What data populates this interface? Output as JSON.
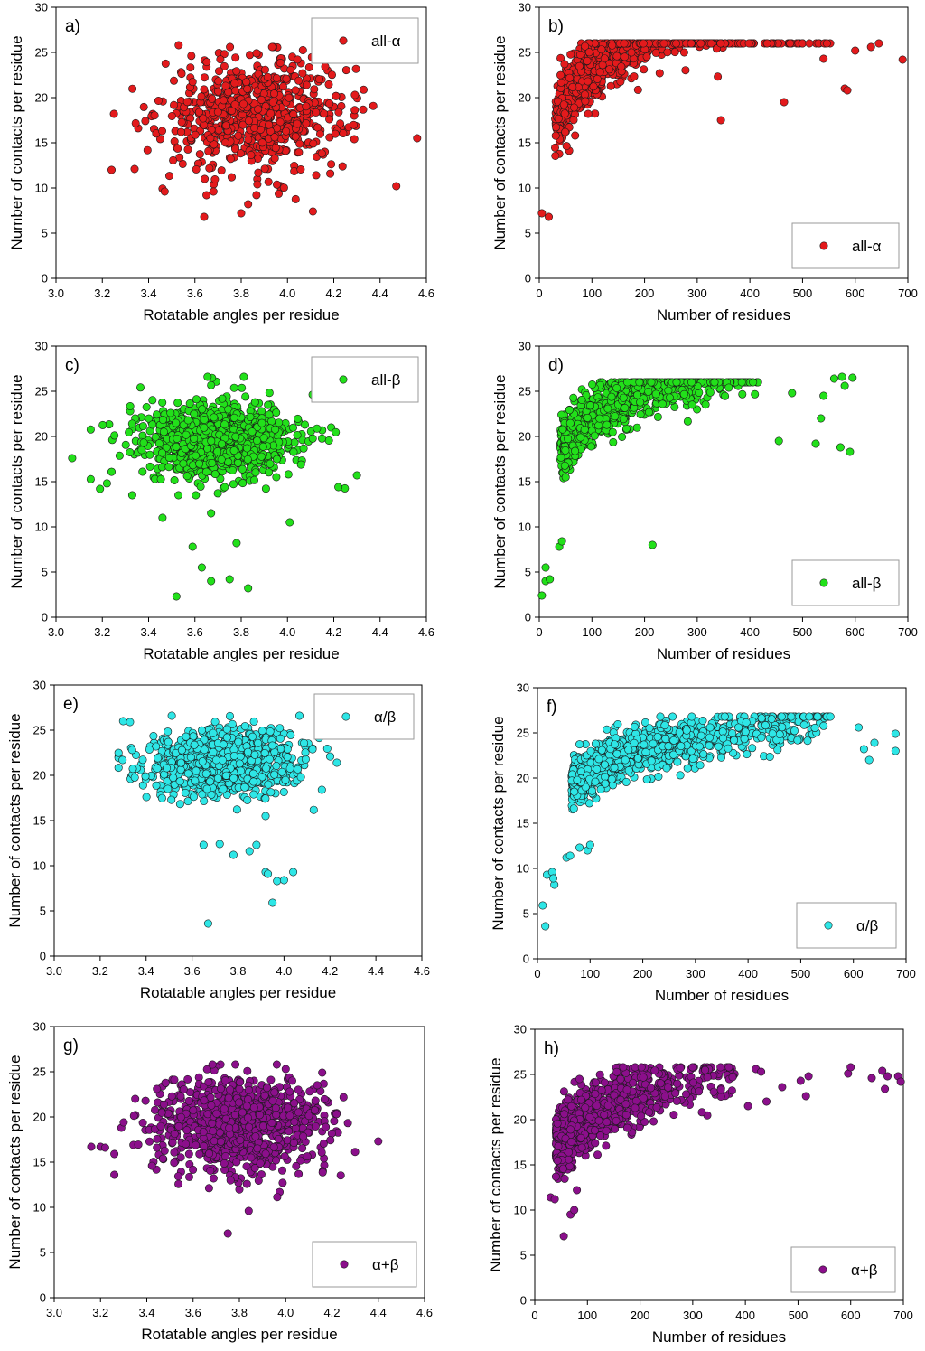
{
  "chart_data": [
    {
      "id": "a",
      "type": "scatter",
      "panel_label": "a)",
      "legend": "all-α",
      "color": "#e31a1c",
      "xlabel": "Rotatable angles per residue",
      "ylabel": "Number of contacts per residue",
      "xlim": [
        3.0,
        4.6
      ],
      "ylim": [
        0,
        30
      ],
      "xticks": [
        "3.0",
        "3.2",
        "3.4",
        "3.6",
        "3.8",
        "4.0",
        "4.2",
        "4.4",
        "4.6"
      ],
      "yticks": [
        "0",
        "5",
        "10",
        "15",
        "20",
        "25",
        "30"
      ],
      "cloud": {
        "count": 700,
        "x_mean": 3.86,
        "x_sd": 0.2,
        "y_mean": 18.2,
        "y_sd": 3.0,
        "x_range": [
          3.33,
          4.46
        ],
        "y_range": [
          8.5,
          25.6
        ]
      },
      "outliers": [
        [
          3.24,
          12.0
        ],
        [
          3.25,
          18.2
        ],
        [
          3.64,
          6.8
        ],
        [
          3.65,
          9.2
        ],
        [
          3.68,
          9.6
        ],
        [
          3.8,
          7.2
        ],
        [
          3.83,
          8.2
        ],
        [
          4.11,
          7.4
        ],
        [
          4.47,
          10.2
        ],
        [
          4.56,
          15.5
        ],
        [
          3.87,
          10.4
        ],
        [
          3.53,
          25.8
        ]
      ]
    },
    {
      "id": "b",
      "type": "scatter",
      "panel_label": "b)",
      "legend": "all-α",
      "color": "#e31a1c",
      "xlabel": "Number of residues",
      "ylabel": "Number of contacts per residue",
      "xlim": [
        0,
        700
      ],
      "ylim": [
        0,
        30
      ],
      "xticks": [
        "0",
        "100",
        "200",
        "300",
        "400",
        "500",
        "600",
        "700"
      ],
      "yticks": [
        "0",
        "5",
        "10",
        "15",
        "20",
        "25",
        "30"
      ],
      "curve": {
        "a": 6.8,
        "b": 8.6,
        "x_min": 30,
        "x_max": 560,
        "x_skew": 140,
        "y_sd": 2.0,
        "count": 700,
        "y_range": [
          6,
          26
        ]
      },
      "outliers": [
        [
          5,
          7.2
        ],
        [
          18,
          6.8
        ],
        [
          580,
          21.0
        ],
        [
          600,
          25.2
        ],
        [
          630,
          25.6
        ],
        [
          645,
          26.0
        ],
        [
          690,
          24.2
        ],
        [
          585,
          20.8
        ],
        [
          540,
          24.3
        ],
        [
          465,
          19.5
        ],
        [
          345,
          17.5
        ]
      ]
    },
    {
      "id": "c",
      "type": "scatter",
      "panel_label": "c)",
      "legend": "all-β",
      "color": "#22e01a",
      "xlabel": "Rotatable angles per residue",
      "ylabel": "Number of contacts per residue",
      "xlim": [
        3.0,
        4.6
      ],
      "ylim": [
        0,
        30
      ],
      "xticks": [
        "3.0",
        "3.2",
        "3.4",
        "3.6",
        "3.8",
        "4.0",
        "4.2",
        "4.4",
        "4.6"
      ],
      "yticks": [
        "0",
        "5",
        "10",
        "15",
        "20",
        "25",
        "30"
      ],
      "cloud": {
        "count": 900,
        "x_mean": 3.7,
        "x_sd": 0.17,
        "y_mean": 19.5,
        "y_sd": 2.2,
        "x_range": [
          3.15,
          4.25
        ],
        "y_range": [
          13.5,
          26.6
        ]
      },
      "outliers": [
        [
          3.52,
          2.3
        ],
        [
          3.83,
          3.2
        ],
        [
          3.67,
          4.0
        ],
        [
          3.75,
          4.2
        ],
        [
          3.63,
          5.5
        ],
        [
          3.59,
          7.8
        ],
        [
          3.78,
          8.2
        ],
        [
          3.67,
          11.5
        ],
        [
          3.46,
          11.0
        ],
        [
          4.01,
          10.5
        ],
        [
          3.07,
          17.6
        ],
        [
          3.19,
          14.2
        ],
        [
          4.3,
          15.7
        ],
        [
          4.22,
          14.4
        ]
      ]
    },
    {
      "id": "d",
      "type": "scatter",
      "panel_label": "d)",
      "legend": "all-β",
      "color": "#22e01a",
      "xlabel": "Number of residues",
      "ylabel": "Number of contacts per residue",
      "xlim": [
        0,
        700
      ],
      "ylim": [
        0,
        30
      ],
      "xticks": [
        "0",
        "100",
        "200",
        "300",
        "400",
        "500",
        "600",
        "700"
      ],
      "yticks": [
        "0",
        "5",
        "10",
        "15",
        "20",
        "25",
        "30"
      ],
      "curve": {
        "a": 9.5,
        "b": 6.6,
        "x_min": 40,
        "x_max": 430,
        "x_skew": 120,
        "y_sd": 1.5,
        "count": 850,
        "y_range": [
          9,
          26
        ]
      },
      "outliers": [
        [
          5,
          2.4
        ],
        [
          12,
          4.0
        ],
        [
          20,
          4.2
        ],
        [
          12,
          5.5
        ],
        [
          38,
          7.8
        ],
        [
          43,
          8.4
        ],
        [
          215,
          8.0
        ],
        [
          560,
          26.4
        ],
        [
          575,
          26.6
        ],
        [
          595,
          26.5
        ],
        [
          580,
          25.6
        ],
        [
          590,
          18.3
        ],
        [
          572,
          18.8
        ],
        [
          535,
          22.0
        ],
        [
          525,
          19.2
        ],
        [
          540,
          24.5
        ],
        [
          455,
          19.5
        ],
        [
          480,
          24.8
        ]
      ]
    },
    {
      "id": "e",
      "type": "scatter",
      "panel_label": "e)",
      "legend": "α/β",
      "color": "#2ee6e6",
      "xlabel": "Rotatable angles per residue",
      "ylabel": "Number of contacts per residue",
      "xlim": [
        3.0,
        4.6
      ],
      "ylim": [
        0,
        30
      ],
      "xticks": [
        "3.0",
        "3.2",
        "3.4",
        "3.6",
        "3.8",
        "4.0",
        "4.2",
        "4.4",
        "4.6"
      ],
      "yticks": [
        "0",
        "5",
        "10",
        "15",
        "20",
        "25",
        "30"
      ],
      "cloud": {
        "count": 950,
        "x_mean": 3.73,
        "x_sd": 0.16,
        "y_mean": 21.5,
        "y_sd": 1.8,
        "x_range": [
          3.28,
          4.22
        ],
        "y_range": [
          15.5,
          26.6
        ]
      },
      "outliers": [
        [
          3.67,
          3.6
        ],
        [
          3.95,
          5.9
        ],
        [
          3.97,
          8.3
        ],
        [
          4.0,
          8.4
        ],
        [
          4.04,
          9.3
        ],
        [
          3.92,
          9.3
        ],
        [
          3.93,
          9.1
        ],
        [
          3.78,
          11.2
        ],
        [
          3.85,
          11.6
        ],
        [
          3.88,
          12.3
        ],
        [
          3.65,
          12.3
        ],
        [
          3.72,
          12.4
        ],
        [
          3.3,
          26.0
        ],
        [
          3.33,
          25.9
        ],
        [
          4.23,
          21.4
        ]
      ]
    },
    {
      "id": "f",
      "type": "scatter",
      "panel_label": "f)",
      "legend": "α/β",
      "color": "#2ee6e6",
      "xlabel": "Number of residues",
      "ylabel": "Number of contacts per residue",
      "xlim": [
        0,
        700
      ],
      "ylim": [
        0,
        30
      ],
      "xticks": [
        "0",
        "100",
        "200",
        "300",
        "400",
        "500",
        "600",
        "700"
      ],
      "yticks": [
        "0",
        "5",
        "10",
        "15",
        "20",
        "25",
        "30"
      ],
      "curve": {
        "a": 11.0,
        "b": 5.2,
        "x_min": 65,
        "x_max": 560,
        "x_skew": 170,
        "y_sd": 1.3,
        "count": 1100,
        "y_range": [
          14.5,
          26.8
        ]
      },
      "outliers": [
        [
          10,
          5.9
        ],
        [
          15,
          3.6
        ],
        [
          18,
          9.3
        ],
        [
          28,
          9.6
        ],
        [
          32,
          8.2
        ],
        [
          30,
          8.9
        ],
        [
          55,
          11.2
        ],
        [
          62,
          11.4
        ],
        [
          80,
          12.3
        ],
        [
          95,
          12.0
        ],
        [
          100,
          12.6
        ],
        [
          610,
          25.6
        ],
        [
          620,
          23.2
        ],
        [
          630,
          22.0
        ],
        [
          640,
          23.9
        ],
        [
          680,
          23.0
        ],
        [
          680,
          24.9
        ]
      ]
    },
    {
      "id": "g",
      "type": "scatter",
      "panel_label": "g)",
      "legend": "α+β",
      "color": "#8b0f8b",
      "xlabel": "Rotatable angles per residue",
      "ylabel": "Number of contacts per residue",
      "xlim": [
        3.0,
        4.6
      ],
      "ylim": [
        0,
        30
      ],
      "xticks": [
        "3.0",
        "3.2",
        "3.4",
        "3.6",
        "3.8",
        "4.0",
        "4.2",
        "4.4",
        "4.6"
      ],
      "yticks": [
        "0",
        "5",
        "10",
        "15",
        "20",
        "25",
        "30"
      ],
      "cloud": {
        "count": 900,
        "x_mean": 3.8,
        "x_sd": 0.18,
        "y_mean": 19.2,
        "y_sd": 2.6,
        "x_range": [
          3.32,
          4.3
        ],
        "y_range": [
          10.5,
          25.8
        ]
      },
      "outliers": [
        [
          3.16,
          16.7
        ],
        [
          3.2,
          16.7
        ],
        [
          3.22,
          16.6
        ],
        [
          3.26,
          15.9
        ],
        [
          3.26,
          13.6
        ],
        [
          3.29,
          18.8
        ],
        [
          3.3,
          19.4
        ],
        [
          3.75,
          7.1
        ],
        [
          3.84,
          9.6
        ],
        [
          4.4,
          17.3
        ],
        [
          3.35,
          22.0
        ]
      ]
    },
    {
      "id": "h",
      "type": "scatter",
      "panel_label": "h)",
      "legend": "α+β",
      "color": "#8b0f8b",
      "xlabel": "Number of residues",
      "ylabel": "Number of contacts per residue",
      "xlim": [
        0,
        700
      ],
      "ylim": [
        0,
        30
      ],
      "xticks": [
        "0",
        "100",
        "200",
        "300",
        "400",
        "500",
        "600",
        "700"
      ],
      "yticks": [
        "0",
        "5",
        "10",
        "15",
        "20",
        "25",
        "30"
      ],
      "curve": {
        "a": 9.0,
        "b": 5.9,
        "x_min": 40,
        "x_max": 380,
        "x_skew": 110,
        "y_sd": 1.7,
        "count": 900,
        "y_range": [
          9,
          25.8
        ]
      },
      "outliers": [
        [
          30,
          11.4
        ],
        [
          38,
          11.2
        ],
        [
          55,
          7.1
        ],
        [
          68,
          9.5
        ],
        [
          75,
          10.0
        ],
        [
          80,
          12.2
        ],
        [
          85,
          24.5
        ],
        [
          405,
          21.5
        ],
        [
          420,
          25.6
        ],
        [
          430,
          25.3
        ],
        [
          440,
          22.0
        ],
        [
          470,
          23.6
        ],
        [
          505,
          24.3
        ],
        [
          515,
          22.6
        ],
        [
          520,
          24.8
        ],
        [
          595,
          25.1
        ],
        [
          600,
          25.8
        ],
        [
          640,
          24.6
        ],
        [
          660,
          25.4
        ],
        [
          665,
          23.4
        ],
        [
          670,
          24.8
        ],
        [
          690,
          24.8
        ],
        [
          695,
          24.2
        ]
      ]
    }
  ]
}
